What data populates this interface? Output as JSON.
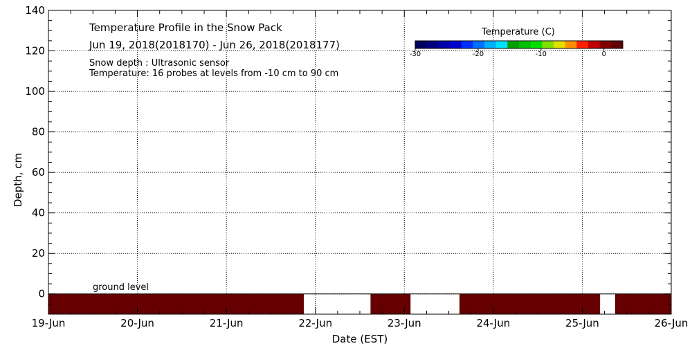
{
  "chart_data": {
    "type": "heatmap",
    "title": "Temperature Profile in the Snow Pack",
    "subtitle": "Jun 19, 2018(2018170) - Jun 26, 2018(2018177)",
    "info_lines": [
      "Snow depth : Ultrasonic sensor",
      "Temperature: 16 probes at levels from -10 cm to 90 cm"
    ],
    "xlabel": "Date (EST)",
    "ylabel": "Depth, cm",
    "x_ticks": [
      "19-Jun",
      "20-Jun",
      "21-Jun",
      "22-Jun",
      "23-Jun",
      "24-Jun",
      "25-Jun",
      "26-Jun"
    ],
    "xlim": [
      0,
      7
    ],
    "y_ticks": [
      0,
      20,
      40,
      60,
      80,
      100,
      120,
      140
    ],
    "ylim": [
      -10,
      140
    ],
    "grid": true,
    "annotation": "ground level",
    "ground_level": 0,
    "ground_band": {
      "from_depth": -10,
      "to_depth": 0,
      "color": "#660000",
      "segments": [
        {
          "start": 0.0,
          "end": 2.87
        },
        {
          "start": 3.62,
          "end": 4.07
        },
        {
          "start": 4.62,
          "end": 6.2
        },
        {
          "start": 6.37,
          "end": 7.0
        }
      ]
    },
    "colorbar": {
      "title": "Temperature (C)",
      "range": [
        -30,
        3
      ],
      "ticks": [
        -30,
        -20,
        -10,
        0
      ],
      "tick_labels": [
        "-30",
        "-20",
        "-10",
        "0"
      ],
      "colors": [
        "#000060",
        "#000080",
        "#0000aa",
        "#0000cc",
        "#0030ff",
        "#0070ff",
        "#00b0ff",
        "#00e0ff",
        "#00a000",
        "#00c000",
        "#00e000",
        "#80e000",
        "#e0e000",
        "#ff9000",
        "#ff2000",
        "#c00000",
        "#800000",
        "#600000"
      ]
    }
  }
}
